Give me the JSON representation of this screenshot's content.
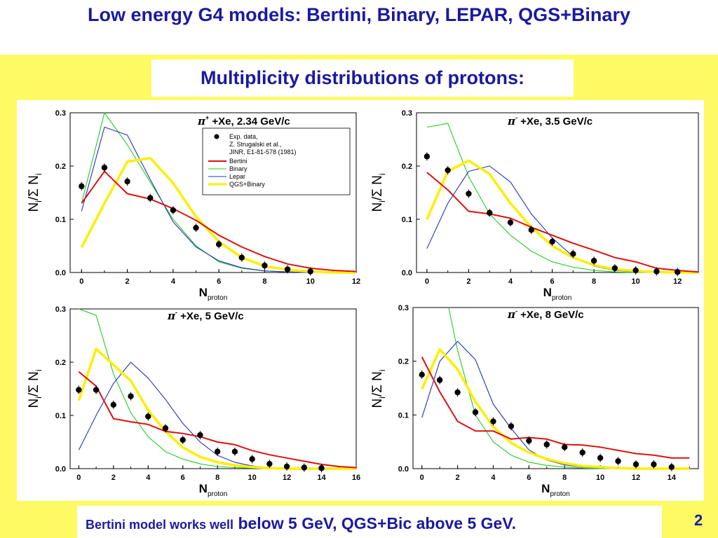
{
  "slide": {
    "title": "Low energy G4 models: Bertini, Binary, LEPAR, QGS+Binary",
    "subtitle": "Multiplicity distributions of protons:",
    "footer_small": "Bertini model works well",
    "footer_big": " below 5 GeV, QGS+Bic above 5 GeV.",
    "page_number": "2"
  },
  "colors": {
    "title_text": "#1a1aa0",
    "background_band": "#fefa64",
    "exp": "#000000",
    "bertini": "#dd1111",
    "binary": "#22cc22",
    "lepar": "#2233bb",
    "qgs_binary": "#ffee00"
  },
  "legend": {
    "exp_lines": [
      "Exp. data,",
      "Z. Strugalski et al.,",
      "JINR, E1-81-578 (1981)"
    ],
    "bertini": "Bertini",
    "binary": "Binary",
    "lepar": "Lepar",
    "qgs_binary": "QGS+Binary"
  },
  "chart_data": [
    {
      "type": "line",
      "title_particle": "π",
      "title_charge": "+",
      "title_rest": " +Xe, 2.34 GeV/c",
      "ylabel": "N",
      "ylabel_sub1": "i",
      "ylabel_mid": "/Σ N",
      "ylabel_sub2": "i",
      "xlabel": "N",
      "xlabel_sub": "proton",
      "xlim": [
        -0.5,
        12
      ],
      "ylim": [
        0,
        0.3
      ],
      "xticks": [
        0,
        2,
        4,
        6,
        8,
        10,
        12
      ],
      "yticks": [
        "0.0",
        "0.1",
        "0.2",
        "0.3"
      ],
      "yticks_values": [
        0,
        0.1,
        0.2,
        0.3
      ],
      "legend": true,
      "series": [
        {
          "name": "Exp. data",
          "kind": "points",
          "x": [
            0,
            1,
            2,
            3,
            4,
            5,
            6,
            7,
            8,
            9,
            10
          ],
          "y": [
            0.162,
            0.197,
            0.171,
            0.14,
            0.117,
            0.084,
            0.053,
            0.028,
            0.013,
            0.006,
            0.002
          ]
        },
        {
          "name": "Bertini",
          "kind": "line",
          "x": [
            0,
            1,
            2,
            3,
            4,
            5,
            6,
            7,
            8,
            9,
            10,
            11,
            12
          ],
          "y": [
            0.13,
            0.19,
            0.148,
            0.138,
            0.12,
            0.098,
            0.07,
            0.048,
            0.03,
            0.016,
            0.008,
            0.004,
            0.002
          ]
        },
        {
          "name": "Binary",
          "kind": "line",
          "x": [
            0,
            1,
            2,
            3,
            4,
            5,
            6,
            7,
            8,
            9,
            10,
            11,
            12
          ],
          "y": [
            0.13,
            0.3,
            0.24,
            0.17,
            0.1,
            0.05,
            0.02,
            0.008,
            0.003,
            0.001,
            0.0,
            0.0,
            0.0
          ]
        },
        {
          "name": "Lepar",
          "kind": "line",
          "x": [
            0,
            1,
            2,
            3,
            4,
            5,
            6,
            7,
            8,
            9,
            10,
            11,
            12
          ],
          "y": [
            0.115,
            0.273,
            0.258,
            0.175,
            0.095,
            0.048,
            0.022,
            0.009,
            0.003,
            0.001,
            0.0,
            0.0,
            0.0
          ]
        },
        {
          "name": "QGS+Binary",
          "kind": "thick",
          "x": [
            0,
            1,
            2,
            3,
            4,
            5,
            6,
            7,
            8,
            9,
            10,
            11,
            12
          ],
          "y": [
            0.047,
            0.13,
            0.208,
            0.215,
            0.168,
            0.105,
            0.058,
            0.028,
            0.012,
            0.005,
            0.002,
            0.0,
            0.0
          ]
        }
      ]
    },
    {
      "type": "line",
      "title_particle": "π",
      "title_charge": "-",
      "title_rest": " +Xe, 3.5 GeV/c",
      "ylabel": "N",
      "ylabel_sub1": "i",
      "ylabel_mid": "/Σ N",
      "ylabel_sub2": "i",
      "xlabel": "N",
      "xlabel_sub": "proton",
      "xlim": [
        -0.5,
        13
      ],
      "ylim": [
        0,
        0.3
      ],
      "xticks": [
        0,
        2,
        4,
        6,
        8,
        10,
        12
      ],
      "yticks": [
        "0.0",
        "0.1",
        "0.2",
        "0.3"
      ],
      "yticks_values": [
        0,
        0.1,
        0.2,
        0.3
      ],
      "legend": false,
      "series": [
        {
          "name": "Exp. data",
          "kind": "points",
          "x": [
            0,
            1,
            2,
            3,
            4,
            5,
            6,
            7,
            8,
            9,
            10,
            11,
            12
          ],
          "y": [
            0.218,
            0.192,
            0.148,
            0.112,
            0.094,
            0.08,
            0.058,
            0.035,
            0.022,
            0.008,
            0.004,
            0.002,
            0.001
          ]
        },
        {
          "name": "Bertini",
          "kind": "line",
          "x": [
            0,
            1,
            2,
            3,
            4,
            5,
            6,
            7,
            8,
            9,
            10,
            11,
            12,
            13
          ],
          "y": [
            0.188,
            0.155,
            0.115,
            0.11,
            0.102,
            0.085,
            0.07,
            0.055,
            0.042,
            0.028,
            0.02,
            0.008,
            0.004,
            0.001
          ]
        },
        {
          "name": "Binary",
          "kind": "line",
          "x": [
            0,
            1,
            2,
            3,
            4,
            5,
            6,
            7,
            8,
            9,
            10,
            11,
            12,
            13
          ],
          "y": [
            0.273,
            0.28,
            0.18,
            0.11,
            0.07,
            0.04,
            0.02,
            0.01,
            0.004,
            0.001,
            0.0,
            0.0,
            0.0,
            0.0
          ]
        },
        {
          "name": "Lepar",
          "kind": "line",
          "x": [
            0,
            1,
            2,
            3,
            4,
            5,
            6,
            7,
            8,
            9,
            10,
            11,
            12,
            13
          ],
          "y": [
            0.045,
            0.13,
            0.19,
            0.2,
            0.17,
            0.11,
            0.065,
            0.03,
            0.012,
            0.004,
            0.001,
            0.0,
            0.0,
            0.0
          ]
        },
        {
          "name": "QGS+Binary",
          "kind": "thick",
          "x": [
            0,
            1,
            2,
            3,
            4,
            5,
            6,
            7,
            8,
            9,
            10,
            11,
            12,
            13
          ],
          "y": [
            0.1,
            0.19,
            0.21,
            0.185,
            0.13,
            0.085,
            0.05,
            0.028,
            0.014,
            0.006,
            0.003,
            0.001,
            0.0,
            0.0
          ]
        }
      ]
    },
    {
      "type": "line",
      "title_particle": "π",
      "title_charge": "-",
      "title_rest": " +Xe, 5 GeV/c",
      "ylabel": "N",
      "ylabel_sub1": "i",
      "ylabel_mid": "/Σ N",
      "ylabel_sub2": "i",
      "xlabel": "N",
      "xlabel_sub": "proton",
      "xlim": [
        -0.5,
        16
      ],
      "ylim": [
        0,
        0.3
      ],
      "xticks": [
        0,
        2,
        4,
        6,
        8,
        10,
        12,
        14,
        16
      ],
      "yticks": [
        "0.0",
        "0.1",
        "0.2",
        "0.3"
      ],
      "yticks_values": [
        0,
        0.1,
        0.2,
        0.3
      ],
      "legend": false,
      "series": [
        {
          "name": "Exp. data",
          "kind": "points",
          "x": [
            0,
            1,
            2,
            3,
            4,
            5,
            6,
            7,
            8,
            9,
            10,
            11,
            12,
            13,
            14
          ],
          "y": [
            0.148,
            0.148,
            0.12,
            0.136,
            0.098,
            0.076,
            0.054,
            0.063,
            0.032,
            0.032,
            0.018,
            0.009,
            0.004,
            0.002,
            0.001
          ]
        },
        {
          "name": "Bertini",
          "kind": "line",
          "x": [
            0,
            1,
            2,
            3,
            4,
            5,
            6,
            7,
            8,
            9,
            10,
            11,
            12,
            13,
            14,
            15,
            16
          ],
          "y": [
            0.182,
            0.155,
            0.094,
            0.088,
            0.083,
            0.07,
            0.066,
            0.06,
            0.05,
            0.045,
            0.034,
            0.026,
            0.02,
            0.014,
            0.008,
            0.004,
            0.002
          ]
        },
        {
          "name": "Binary",
          "kind": "line",
          "x": [
            0,
            1,
            2,
            3,
            4,
            5,
            6,
            7,
            8,
            9,
            10,
            11,
            12,
            13,
            14,
            15,
            16
          ],
          "y": [
            0.3,
            0.288,
            0.178,
            0.105,
            0.06,
            0.032,
            0.018,
            0.009,
            0.004,
            0.002,
            0.001,
            0.0,
            0.0,
            0.0,
            0.0,
            0.0,
            0.0
          ]
        },
        {
          "name": "Lepar",
          "kind": "line",
          "x": [
            0,
            1,
            2,
            3,
            4,
            5,
            6,
            7,
            8,
            9,
            10,
            11,
            12,
            13,
            14,
            15,
            16
          ],
          "y": [
            0.035,
            0.1,
            0.16,
            0.2,
            0.17,
            0.13,
            0.085,
            0.05,
            0.025,
            0.012,
            0.005,
            0.002,
            0.001,
            0.0,
            0.0,
            0.0,
            0.0
          ]
        },
        {
          "name": "QGS+Binary",
          "kind": "thick",
          "x": [
            0,
            1,
            2,
            3,
            4,
            5,
            6,
            7,
            8,
            9,
            10,
            11,
            12,
            13,
            14,
            15,
            16
          ],
          "y": [
            0.128,
            0.225,
            0.195,
            0.165,
            0.11,
            0.07,
            0.04,
            0.022,
            0.012,
            0.006,
            0.003,
            0.001,
            0.0,
            0.0,
            0.0,
            0.0,
            0.0
          ]
        }
      ]
    },
    {
      "type": "line",
      "title_particle": "π",
      "title_charge": "-",
      "title_rest": " +Xe, 8 GeV/c",
      "ylabel": "N",
      "ylabel_sub1": "i",
      "ylabel_mid": "/Σ N",
      "ylabel_sub2": "i",
      "xlabel": "N",
      "xlabel_sub": "proton",
      "xlim": [
        -0.5,
        15.5
      ],
      "ylim": [
        0,
        0.3
      ],
      "xticks": [
        0,
        2,
        4,
        6,
        8,
        10,
        12,
        14
      ],
      "yticks": [
        "0.0",
        "0.1",
        "0.2",
        "0.3"
      ],
      "yticks_values": [
        0,
        0.1,
        0.2,
        0.3
      ],
      "legend": false,
      "series": [
        {
          "name": "Exp. data",
          "kind": "points",
          "x": [
            0,
            1,
            2,
            3,
            4,
            5,
            6,
            7,
            8,
            9,
            10,
            11,
            12,
            13,
            14
          ],
          "y": [
            0.175,
            0.165,
            0.142,
            0.105,
            0.088,
            0.079,
            0.052,
            0.045,
            0.04,
            0.03,
            0.02,
            0.014,
            0.008,
            0.008,
            0.003
          ]
        },
        {
          "name": "Bertini",
          "kind": "line",
          "x": [
            0,
            1,
            2,
            3,
            4,
            5,
            6,
            7,
            8,
            9,
            10,
            11,
            12,
            13,
            14,
            15
          ],
          "y": [
            0.208,
            0.143,
            0.088,
            0.07,
            0.07,
            0.055,
            0.058,
            0.055,
            0.045,
            0.044,
            0.04,
            0.034,
            0.028,
            0.025,
            0.02,
            0.02
          ]
        },
        {
          "name": "Binary",
          "kind": "line",
          "x": [
            1.5,
            2,
            3,
            4,
            5,
            6,
            7,
            8,
            9,
            10,
            11,
            12,
            13,
            14,
            15
          ],
          "y": [
            0.3,
            0.22,
            0.1,
            0.05,
            0.025,
            0.012,
            0.006,
            0.003,
            0.001,
            0.0,
            0.0,
            0.0,
            0.0,
            0.0,
            0.0
          ]
        },
        {
          "name": "Lepar",
          "kind": "line",
          "x": [
            0,
            1,
            2,
            3,
            4,
            5,
            6,
            7,
            8,
            9,
            10,
            11,
            12,
            13,
            14,
            15
          ],
          "y": [
            0.095,
            0.2,
            0.237,
            0.203,
            0.12,
            0.075,
            0.035,
            0.016,
            0.007,
            0.003,
            0.001,
            0.0,
            0.0,
            0.0,
            0.0,
            0.0
          ]
        },
        {
          "name": "QGS+Binary",
          "kind": "thick",
          "x": [
            0,
            1,
            2,
            3,
            4,
            5,
            6,
            7,
            8,
            9,
            10,
            11,
            12,
            13,
            14,
            15
          ],
          "y": [
            0.148,
            0.222,
            0.185,
            0.125,
            0.078,
            0.048,
            0.03,
            0.018,
            0.01,
            0.005,
            0.003,
            0.001,
            0.0,
            0.0,
            0.0,
            0.0
          ]
        }
      ]
    }
  ]
}
